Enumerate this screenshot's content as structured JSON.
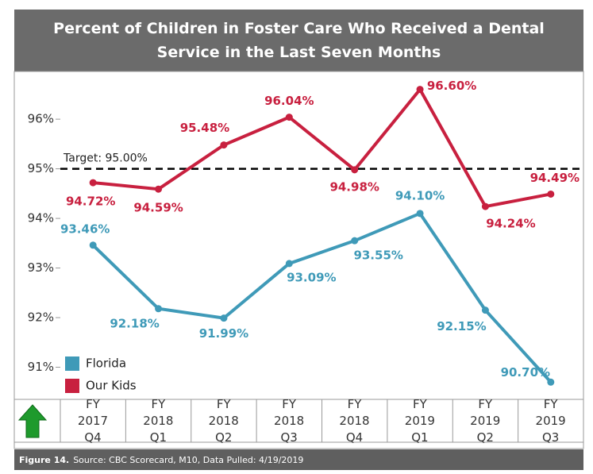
{
  "chart_data": {
    "type": "line",
    "title": "Percent of Children in Foster Care Who Received a Dental Service in the Last Seven Months",
    "categories": [
      "FY 2017 Q4",
      "FY 2018 Q1",
      "FY 2018 Q2",
      "FY 2018 Q3",
      "FY 2018 Q4",
      "FY 2019 Q1",
      "FY 2019 Q2",
      "FY 2019 Q3"
    ],
    "series": [
      {
        "name": "Florida",
        "color": "#3f9ab8",
        "values": [
          93.46,
          92.18,
          91.99,
          93.09,
          93.55,
          94.1,
          92.15,
          90.7
        ],
        "value_labels": [
          "93.46%",
          "92.18%",
          "91.99%",
          "93.09%",
          "93.55%",
          "94.10%",
          "92.15%",
          "90.70%"
        ]
      },
      {
        "name": "Our Kids",
        "color": "#c8203f",
        "values": [
          94.72,
          94.59,
          95.48,
          96.04,
          94.98,
          96.6,
          94.24,
          94.49
        ],
        "value_labels": [
          "94.72%",
          "94.59%",
          "95.48%",
          "96.04%",
          "94.98%",
          "96.60%",
          "94.24%",
          "94.49%"
        ]
      }
    ],
    "ylim": [
      90.4,
      96.93
    ],
    "yticks": [
      {
        "value": 91,
        "label": "91%"
      },
      {
        "value": 92,
        "label": "92%"
      },
      {
        "value": 93,
        "label": "93%"
      },
      {
        "value": 94,
        "label": "94%"
      },
      {
        "value": 95,
        "label": "95%"
      },
      {
        "value": 96,
        "label": "96%"
      }
    ],
    "target": {
      "value": 95,
      "label": "Target: 95.00%"
    },
    "legend": "lower left",
    "footer": {
      "figure": "Figure 14.",
      "source": "Source: CBC Scorecard, M10, Data Pulled:  4/19/2019"
    }
  }
}
